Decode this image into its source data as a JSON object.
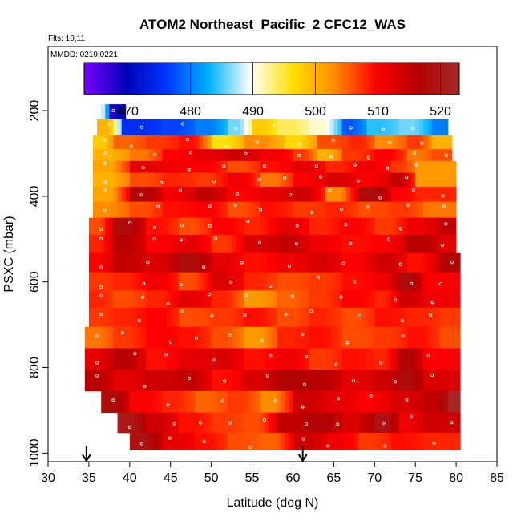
{
  "chart_data": {
    "type": "heatmap",
    "title": "ATOM2 Northeast_Pacific_2 CFC12_WAS",
    "subtitle_flights": "Flts: 10,11",
    "subtitle_dates": "MMDD: 0219,0221",
    "xlabel": "Latitude (deg N)",
    "ylabel": "PSXC (mbar)",
    "xlim": [
      30,
      85
    ],
    "ylim": [
      1020,
      50
    ],
    "x_ticks": [
      "30",
      "35",
      "40",
      "45",
      "50",
      "55",
      "60",
      "65",
      "70",
      "75",
      "80",
      "85"
    ],
    "y_ticks": [
      "200",
      "400",
      "600",
      "800",
      "1000"
    ],
    "colorbar": {
      "range": [
        463,
        523
      ],
      "ticks": [
        "470",
        "480",
        "490",
        "500",
        "510",
        "520"
      ],
      "stops": [
        "#7a00ff",
        "#0000b8",
        "#0038ff",
        "#00b4ff",
        "#ffffff",
        "#ffe000",
        "#ff8c00",
        "#ff0000",
        "#b40000",
        "#a52a2a"
      ]
    },
    "rows": [
      {
        "p": 200,
        "x0": 36.5,
        "x1": 39.5,
        "segments": [
          [
            36.5,
            488
          ],
          [
            37.5,
            468
          ],
          [
            38.5,
            470
          ]
        ]
      },
      {
        "p": 240,
        "x0": 36,
        "x1": 79,
        "segments": [
          [
            36,
            500
          ],
          [
            39,
            475
          ],
          [
            44,
            477
          ],
          [
            48,
            480
          ],
          [
            52,
            486
          ],
          [
            55,
            498
          ],
          [
            58,
            494
          ],
          [
            62,
            491
          ],
          [
            66,
            478
          ],
          [
            69,
            484
          ],
          [
            73,
            486
          ],
          [
            77,
            480
          ]
        ]
      },
      {
        "p": 275,
        "x0": 35.5,
        "x1": 79.5,
        "segments": [
          [
            35.5,
            498
          ],
          [
            38,
            505
          ],
          [
            42,
            507
          ],
          [
            46,
            509
          ],
          [
            50,
            496
          ],
          [
            54,
            503
          ],
          [
            59,
            497
          ],
          [
            63,
            506
          ],
          [
            67,
            508
          ],
          [
            70,
            503
          ],
          [
            74,
            507
          ],
          [
            77,
            500
          ]
        ]
      },
      {
        "p": 305,
        "x0": 35.5,
        "x1": 79.5,
        "segments": [
          [
            35.5,
            500
          ],
          [
            40,
            504
          ],
          [
            44,
            510
          ],
          [
            48,
            512
          ],
          [
            52,
            514
          ],
          [
            56,
            511
          ],
          [
            60,
            507
          ],
          [
            63,
            500
          ],
          [
            66,
            507
          ],
          [
            70,
            510
          ],
          [
            74,
            504
          ],
          [
            77,
            506
          ]
        ]
      },
      {
        "p": 330,
        "x0": 35.5,
        "x1": 80,
        "segments": [
          [
            35.5,
            501
          ],
          [
            40,
            512
          ],
          [
            44,
            511
          ],
          [
            48,
            510
          ],
          [
            52,
            506
          ],
          [
            56,
            509
          ],
          [
            60,
            512
          ],
          [
            64,
            508
          ],
          [
            68,
            511
          ],
          [
            72,
            507
          ],
          [
            75,
            502
          ]
        ]
      },
      {
        "p": 360,
        "x0": 35.5,
        "x1": 80,
        "segments": [
          [
            35.5,
            500
          ],
          [
            40,
            506
          ],
          [
            44,
            508
          ],
          [
            48,
            507
          ],
          [
            52,
            511
          ],
          [
            56,
            504
          ],
          [
            60,
            510
          ],
          [
            64,
            513
          ],
          [
            68,
            510
          ],
          [
            72,
            515
          ],
          [
            75,
            502
          ]
        ]
      },
      {
        "p": 395,
        "x0": 35.5,
        "x1": 80,
        "segments": [
          [
            35.5,
            501
          ],
          [
            40,
            517
          ],
          [
            44,
            511
          ],
          [
            48,
            515
          ],
          [
            52,
            510
          ],
          [
            56,
            512
          ],
          [
            60,
            514
          ],
          [
            64,
            503
          ],
          [
            68,
            518
          ],
          [
            72,
            510
          ],
          [
            75,
            508
          ]
        ]
      },
      {
        "p": 430,
        "x0": 35.5,
        "x1": 80,
        "segments": [
          [
            35.5,
            503
          ],
          [
            40,
            506
          ],
          [
            44,
            509
          ],
          [
            48,
            510
          ],
          [
            52,
            506
          ],
          [
            56,
            509
          ],
          [
            60,
            507
          ],
          [
            64,
            508
          ],
          [
            68,
            506
          ],
          [
            72,
            507
          ],
          [
            76,
            504
          ]
        ]
      },
      {
        "p": 470,
        "x0": 35,
        "x1": 80,
        "segments": [
          [
            35,
            506
          ],
          [
            38,
            518
          ],
          [
            42,
            509
          ],
          [
            46,
            506
          ],
          [
            50,
            510
          ],
          [
            54,
            508
          ],
          [
            58,
            512
          ],
          [
            62,
            508
          ],
          [
            66,
            510
          ],
          [
            70,
            507
          ],
          [
            74,
            511
          ],
          [
            78,
            515
          ]
        ]
      },
      {
        "p": 510,
        "x0": 35,
        "x1": 80,
        "segments": [
          [
            35,
            508
          ],
          [
            38,
            516
          ],
          [
            42,
            510
          ],
          [
            46,
            512
          ],
          [
            50,
            507
          ],
          [
            54,
            513
          ],
          [
            58,
            515
          ],
          [
            62,
            511
          ],
          [
            66,
            509
          ],
          [
            70,
            510
          ],
          [
            74,
            516
          ],
          [
            78,
            512
          ]
        ]
      },
      {
        "p": 555,
        "x0": 35,
        "x1": 80.5,
        "segments": [
          [
            35,
            510
          ],
          [
            38,
            515
          ],
          [
            42,
            513
          ],
          [
            46,
            518
          ],
          [
            50,
            512
          ],
          [
            54,
            509
          ],
          [
            58,
            511
          ],
          [
            62,
            513
          ],
          [
            66,
            510
          ],
          [
            70,
            514
          ],
          [
            74,
            509
          ],
          [
            78,
            517
          ]
        ]
      },
      {
        "p": 600,
        "x0": 35,
        "x1": 80.5,
        "segments": [
          [
            35,
            507
          ],
          [
            38,
            508
          ],
          [
            42,
            511
          ],
          [
            46,
            506
          ],
          [
            50,
            513
          ],
          [
            54,
            508
          ],
          [
            58,
            506
          ],
          [
            62,
            507
          ],
          [
            66,
            509
          ],
          [
            70,
            511
          ],
          [
            73,
            518
          ],
          [
            76,
            510
          ]
        ]
      },
      {
        "p": 640,
        "x0": 35,
        "x1": 80.5,
        "segments": [
          [
            35,
            508
          ],
          [
            38,
            506
          ],
          [
            42,
            508
          ],
          [
            46,
            512
          ],
          [
            50,
            508
          ],
          [
            54,
            502
          ],
          [
            58,
            505
          ],
          [
            62,
            507
          ],
          [
            66,
            510
          ],
          [
            70,
            508
          ],
          [
            73,
            514
          ],
          [
            76,
            511
          ]
        ]
      },
      {
        "p": 680,
        "x0": 35,
        "x1": 80.5,
        "segments": [
          [
            35,
            507
          ],
          [
            38,
            508
          ],
          [
            42,
            510
          ],
          [
            46,
            506
          ],
          [
            50,
            507
          ],
          [
            54,
            509
          ],
          [
            58,
            506
          ],
          [
            62,
            508
          ],
          [
            66,
            506
          ],
          [
            70,
            509
          ],
          [
            74,
            508
          ],
          [
            78,
            507
          ]
        ]
      },
      {
        "p": 730,
        "x0": 34.5,
        "x1": 80.5,
        "segments": [
          [
            34.5,
            504
          ],
          [
            38,
            507
          ],
          [
            42,
            510
          ],
          [
            46,
            509
          ],
          [
            50,
            506
          ],
          [
            54,
            502
          ],
          [
            58,
            508
          ],
          [
            62,
            509
          ],
          [
            66,
            506
          ],
          [
            70,
            507
          ],
          [
            74,
            509
          ],
          [
            78,
            506
          ]
        ]
      },
      {
        "p": 780,
        "x0": 34.5,
        "x1": 80.5,
        "segments": [
          [
            34.5,
            512
          ],
          [
            38,
            516
          ],
          [
            42,
            509
          ],
          [
            46,
            512
          ],
          [
            50,
            513
          ],
          [
            54,
            509
          ],
          [
            58,
            511
          ],
          [
            62,
            507
          ],
          [
            66,
            509
          ],
          [
            70,
            508
          ],
          [
            73,
            517
          ],
          [
            76,
            510
          ]
        ]
      },
      {
        "p": 830,
        "x0": 34.5,
        "x1": 80.5,
        "segments": [
          [
            34.5,
            516
          ],
          [
            38,
            512
          ],
          [
            42,
            514
          ],
          [
            46,
            515
          ],
          [
            50,
            509
          ],
          [
            54,
            513
          ],
          [
            58,
            517
          ],
          [
            62,
            516
          ],
          [
            66,
            512
          ],
          [
            70,
            514
          ],
          [
            73,
            518
          ],
          [
            76,
            513
          ]
        ]
      },
      {
        "p": 880,
        "x0": 36.5,
        "x1": 80.5,
        "segments": [
          [
            36.5,
            518
          ],
          [
            40,
            510
          ],
          [
            44,
            508
          ],
          [
            48,
            505
          ],
          [
            52,
            507
          ],
          [
            56,
            503
          ],
          [
            60,
            514
          ],
          [
            64,
            512
          ],
          [
            68,
            510
          ],
          [
            72,
            513
          ],
          [
            76,
            515
          ],
          [
            79,
            522
          ]
        ]
      },
      {
        "p": 930,
        "x0": 38.5,
        "x1": 80.5,
        "segments": [
          [
            38.5,
            520
          ],
          [
            42,
            514
          ],
          [
            46,
            509
          ],
          [
            50,
            507
          ],
          [
            54,
            506
          ],
          [
            58,
            515
          ],
          [
            62,
            517
          ],
          [
            66,
            513
          ],
          [
            70,
            519
          ],
          [
            73,
            511
          ],
          [
            76,
            514
          ]
        ]
      },
      {
        "p": 975,
        "x0": 40,
        "x1": 80.5,
        "segments": [
          [
            40,
            519
          ],
          [
            44,
            512
          ],
          [
            48,
            509
          ],
          [
            52,
            506
          ],
          [
            56,
            505
          ],
          [
            60,
            514
          ],
          [
            64,
            511
          ],
          [
            68,
            507
          ],
          [
            72,
            509
          ],
          [
            76,
            508
          ]
        ]
      }
    ],
    "markers": [
      {
        "lat": 34.7,
        "symbol": "arrow-down"
      },
      {
        "lat": 61.2,
        "symbol": "arrow-down"
      }
    ]
  }
}
